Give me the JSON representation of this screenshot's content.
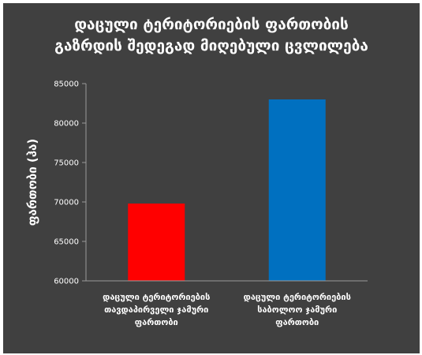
{
  "chart_data": {
    "type": "bar",
    "title_lines": [
      "დაცული ტერიტორიების ფართობის",
      "გაზრდის შედეგად მიღებული ცვლილება"
    ],
    "ylabel": "ფართობი (ჰა)",
    "xlabel": "",
    "ylim": [
      60000,
      85000
    ],
    "yticks": [
      60000,
      65000,
      70000,
      75000,
      80000,
      85000
    ],
    "yticks_labels": [
      "60000",
      "65000",
      "70000",
      "75000",
      "80000",
      "85000"
    ],
    "grid": false,
    "legend": "none",
    "categories": [
      {
        "lines": [
          "დაცული ტერიტორიების",
          "თავდაპირველი ჯამური",
          "ფართობი"
        ]
      },
      {
        "lines": [
          "დაცული ტერიტორიების",
          "საბოლოო ჯამური",
          "ფართობი"
        ]
      }
    ],
    "values": [
      69800,
      83000
    ],
    "colors": [
      "#ff0000",
      "#0070c0"
    ]
  }
}
